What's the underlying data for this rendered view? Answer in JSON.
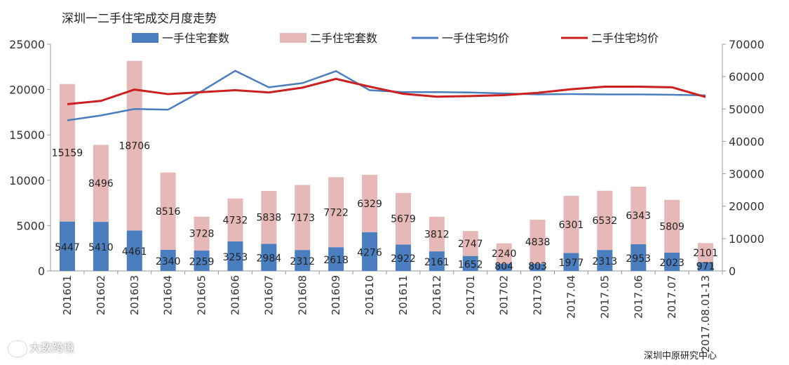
{
  "chart_data": {
    "type": "bar",
    "title": "深圳一二手住宅成交月度走势",
    "categories": [
      "201601",
      "201602",
      "201603",
      "201604",
      "201605",
      "201606",
      "201607",
      "201608",
      "201609",
      "201610",
      "201611",
      "201612",
      "201701",
      "201702",
      "201703",
      "2017.04",
      "2017.05",
      "2017.06",
      "2017.07",
      "2017.08.01-13"
    ],
    "ylim_left": [
      0,
      25000
    ],
    "ylim_right": [
      0,
      70000
    ],
    "yticks_left": [
      "0",
      "5000",
      "10000",
      "15000",
      "20000",
      "25000"
    ],
    "yticks_right": [
      "0",
      "10000",
      "20000",
      "30000",
      "40000",
      "50000",
      "60000",
      "70000"
    ],
    "series": [
      {
        "name": "一手住宅套数",
        "type": "bar",
        "axis": "left",
        "color": "#4a7ebf",
        "values": [
          5447,
          5410,
          4461,
          2340,
          2259,
          3253,
          2984,
          2312,
          2618,
          4276,
          2922,
          2161,
          1652,
          804,
          803,
          1977,
          2313,
          2953,
          2023,
          971
        ]
      },
      {
        "name": "二手住宅套数",
        "type": "bar",
        "axis": "left",
        "color": "#e6b8b7",
        "values": [
          15159,
          8496,
          18706,
          8516,
          3728,
          4732,
          5838,
          7173,
          7722,
          6329,
          5679,
          3812,
          2747,
          2240,
          4838,
          6301,
          6532,
          6343,
          5809,
          2101
        ]
      },
      {
        "name": "一手住宅均价",
        "type": "line",
        "axis": "right",
        "color": "#4a7ebf",
        "values": [
          46500,
          48000,
          50000,
          49800,
          55500,
          61800,
          56700,
          58000,
          61700,
          55800,
          55200,
          55200,
          55100,
          54800,
          54500,
          54600,
          54500,
          54500,
          54400,
          54200
        ]
      },
      {
        "name": "二手住宅均价",
        "type": "line",
        "axis": "right",
        "color": "#cc1f1f",
        "values": [
          51500,
          52500,
          56000,
          54600,
          55200,
          55800,
          55100,
          56600,
          59300,
          56900,
          54700,
          53800,
          54000,
          54300,
          55000,
          56100,
          56900,
          56900,
          56700,
          53700
        ]
      }
    ],
    "legend": "top"
  },
  "source": "深圳中原研究中心",
  "watermark": "大数跨境"
}
